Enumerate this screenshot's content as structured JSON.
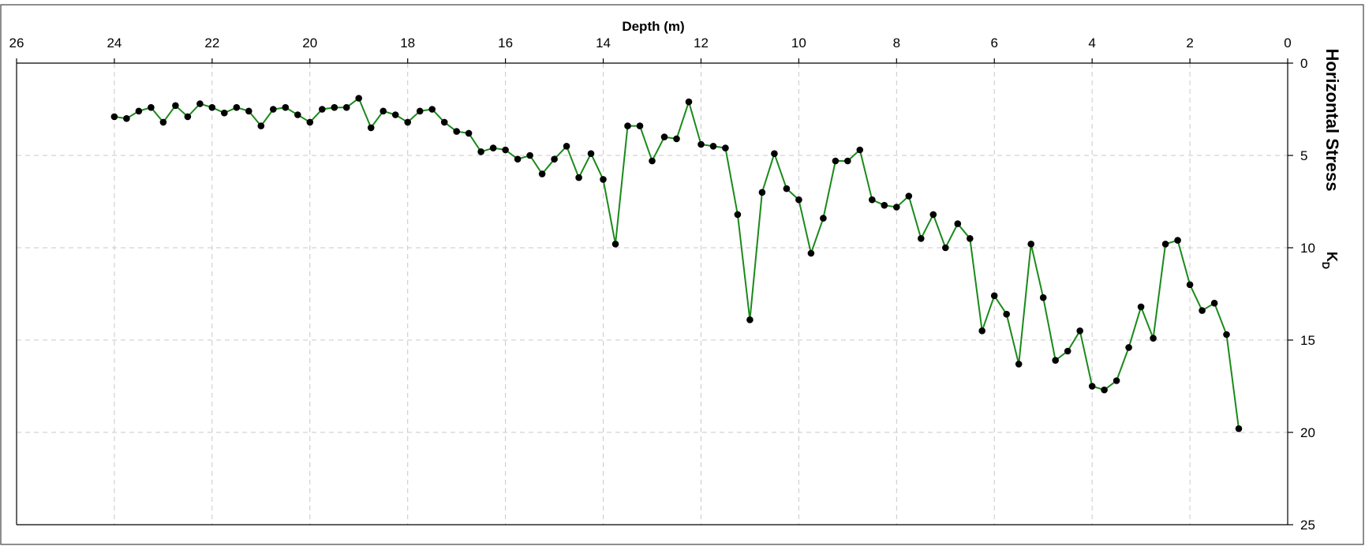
{
  "chart_data": {
    "type": "line",
    "title": "",
    "xlabel": "Depth (m)",
    "ylabel": "Horizontal Stress",
    "ylabel_symbol": "K",
    "ylabel_subscript": "D",
    "xlim": [
      26,
      0
    ],
    "ylim": [
      0,
      25
    ],
    "x_reversed": true,
    "y_reversed": true,
    "x_axis_position": "top",
    "y_axis_position": "right",
    "x_ticks": [
      26,
      24,
      22,
      20,
      18,
      16,
      14,
      12,
      10,
      8,
      6,
      4,
      2,
      0
    ],
    "y_ticks": [
      0,
      5,
      10,
      15,
      20,
      25
    ],
    "grid": true,
    "legend": "none",
    "colors": {
      "line": "#1a8a1a",
      "marker": "#000000",
      "grid": "#c8c8c8"
    },
    "series": [
      {
        "x": [
          24.0,
          23.75,
          23.5,
          23.25,
          23.0,
          22.75,
          22.5,
          22.25,
          22.0,
          21.75,
          21.5,
          21.25,
          21.0,
          20.75,
          20.5,
          20.25,
          20.0,
          19.75,
          19.5,
          19.25,
          19.0,
          18.75,
          18.5,
          18.25,
          18.0,
          17.75,
          17.5,
          17.25,
          17.0,
          16.75,
          16.5,
          16.25,
          16.0,
          15.75,
          15.5,
          15.25,
          15.0,
          14.75,
          14.5,
          14.25,
          14.0,
          13.75,
          13.5,
          13.25,
          13.0,
          12.75,
          12.5,
          12.25,
          12.0,
          11.75,
          11.5,
          11.25,
          11.0,
          10.75,
          10.5,
          10.25,
          10.0,
          9.75,
          9.5,
          9.25,
          9.0,
          8.75,
          8.5,
          8.25,
          8.0,
          7.75,
          7.5,
          7.25,
          7.0,
          6.75,
          6.5,
          6.25,
          6.0,
          5.75,
          5.5,
          5.25,
          5.0,
          4.75,
          4.5,
          4.25,
          4.0,
          3.75,
          3.5,
          3.25,
          3.0,
          2.75,
          2.5,
          2.25,
          2.0,
          1.75,
          1.5,
          1.25,
          1.0
        ],
        "values": [
          2.9,
          3.0,
          2.6,
          2.4,
          3.2,
          2.3,
          2.9,
          2.2,
          2.4,
          2.7,
          2.4,
          2.6,
          3.4,
          2.5,
          2.4,
          2.8,
          3.2,
          2.5,
          2.4,
          2.4,
          1.9,
          3.5,
          2.6,
          2.8,
          3.2,
          2.6,
          2.5,
          3.2,
          3.7,
          3.8,
          4.8,
          4.6,
          4.7,
          5.2,
          5.0,
          6.0,
          5.2,
          4.5,
          6.2,
          4.9,
          6.3,
          9.8,
          3.4,
          3.4,
          5.3,
          4.0,
          4.1,
          2.1,
          4.4,
          4.5,
          4.6,
          8.2,
          13.9,
          7.0,
          4.9,
          6.8,
          7.4,
          10.3,
          8.4,
          5.3,
          5.3,
          4.7,
          7.4,
          7.7,
          7.8,
          7.2,
          9.5,
          8.2,
          10.0,
          8.7,
          9.5,
          14.5,
          12.6,
          13.6,
          16.3,
          9.8,
          12.7,
          16.1,
          15.6,
          14.5,
          17.5,
          17.7,
          17.2,
          15.4,
          13.2,
          14.9,
          9.8,
          9.6,
          12.0,
          13.4,
          13.0,
          14.7,
          19.8
        ]
      }
    ]
  }
}
